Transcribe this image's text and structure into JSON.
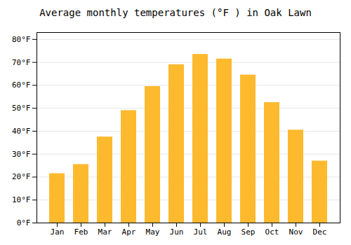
{
  "chart_data": {
    "type": "bar",
    "title": "Average monthly temperatures (°F ) in Oak Lawn",
    "categories": [
      "Jan",
      "Feb",
      "Mar",
      "Apr",
      "May",
      "Jun",
      "Jul",
      "Aug",
      "Sep",
      "Oct",
      "Nov",
      "Dec"
    ],
    "values": [
      21.5,
      25.5,
      37.5,
      49.0,
      59.5,
      69.0,
      73.5,
      71.5,
      64.5,
      52.5,
      40.5,
      27.0
    ],
    "color": "#FDBA2E",
    "ylim": [
      0,
      83
    ],
    "yticks": [
      {
        "value": 0,
        "label": "0°F"
      },
      {
        "value": 10,
        "label": "10°F"
      },
      {
        "value": 20,
        "label": "20°F"
      },
      {
        "value": 30,
        "label": "30°F"
      },
      {
        "value": 40,
        "label": "40°F"
      },
      {
        "value": 50,
        "label": "50°F"
      },
      {
        "value": 60,
        "label": "60°F"
      },
      {
        "value": 70,
        "label": "70°F"
      },
      {
        "value": 80,
        "label": "80°F"
      }
    ],
    "grid": true
  }
}
